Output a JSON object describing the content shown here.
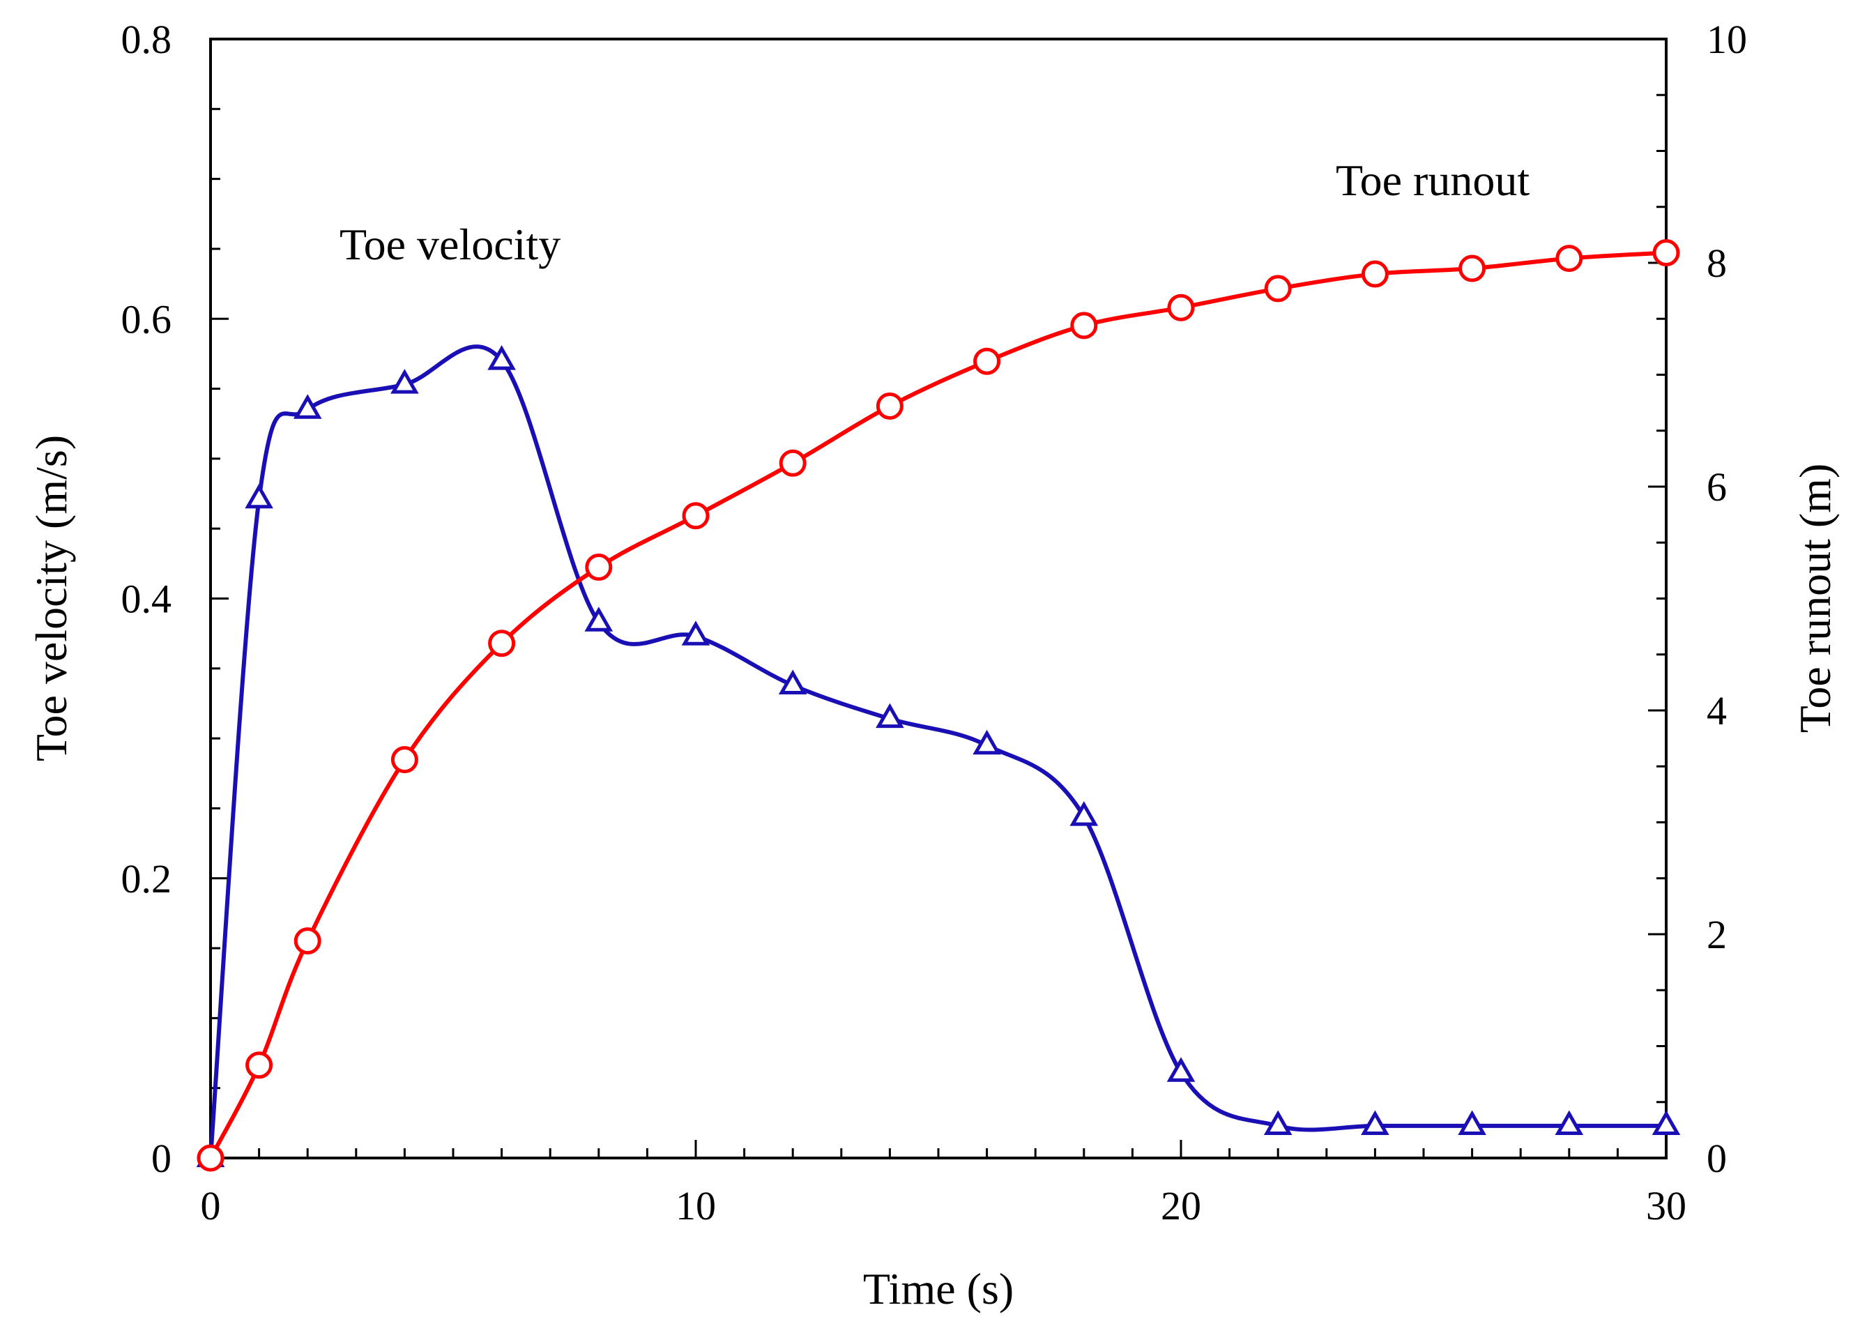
{
  "chart_data": {
    "type": "line",
    "title": "",
    "xlabel": "Time (s)",
    "ylabel_left": "Toe velocity (m/s)",
    "ylabel_right": "Toe runout (m)",
    "xlim": [
      0,
      30
    ],
    "ylim_left": [
      0,
      0.8
    ],
    "ylim_right": [
      0,
      10
    ],
    "grid": false,
    "x_ticks": [
      "0",
      "10",
      "20",
      "30"
    ],
    "y_left_ticks": [
      "0",
      "0.2",
      "0.4",
      "0.6",
      "0.8"
    ],
    "y_right_ticks": [
      "0",
      "2",
      "4",
      "6",
      "8",
      "10"
    ],
    "series": [
      {
        "name": "Toe velocity",
        "axis": "left",
        "color": "#1a0fb4",
        "marker": "triangle",
        "label": "Toe velocity",
        "x": [
          0,
          1,
          2,
          4,
          6,
          8,
          10,
          12,
          14,
          16,
          18,
          20,
          22,
          24,
          26,
          28,
          30
        ],
        "y": [
          0,
          0.471,
          0.535,
          0.553,
          0.57,
          0.383,
          0.373,
          0.338,
          0.314,
          0.295,
          0.244,
          0.061,
          0.023,
          0.023,
          0.023,
          0.023,
          0.023
        ]
      },
      {
        "name": "Toe runout",
        "axis": "right",
        "color": "#ff0000",
        "marker": "circle",
        "label": "Toe runout",
        "x": [
          0,
          1,
          2,
          4,
          6,
          8,
          10,
          12,
          14,
          16,
          18,
          20,
          22,
          24,
          26,
          28,
          30
        ],
        "y": [
          0,
          0.83,
          1.94,
          3.56,
          4.6,
          5.28,
          5.74,
          6.21,
          6.72,
          7.12,
          7.44,
          7.6,
          7.77,
          7.9,
          7.95,
          8.04,
          8.09
        ]
      }
    ]
  }
}
